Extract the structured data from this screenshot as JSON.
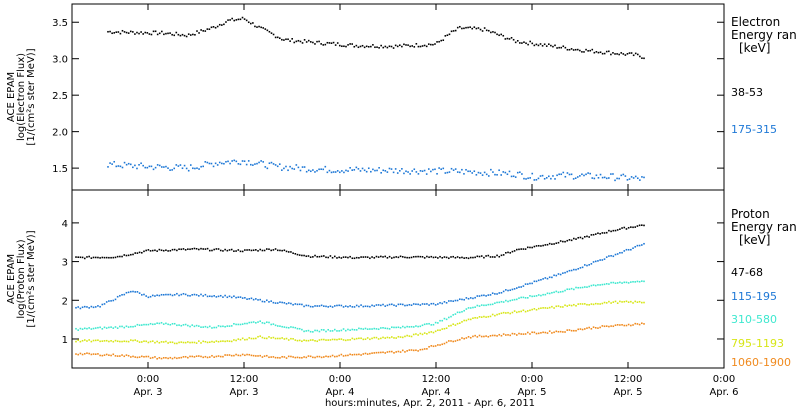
{
  "figure": {
    "xaxis_title": "hours:minutes, Apr.  2, 2011 - Apr.  6, 2011",
    "x_ticks": [
      {
        "time": "0:00",
        "date": "Apr. 3",
        "hours": 24
      },
      {
        "time": "12:00",
        "date": "Apr. 3",
        "hours": 36
      },
      {
        "time": "0:00",
        "date": "Apr. 4",
        "hours": 48
      },
      {
        "time": "12:00",
        "date": "Apr. 4",
        "hours": 60
      },
      {
        "time": "0:00",
        "date": "Apr. 5",
        "hours": 72
      },
      {
        "time": "12:00",
        "date": "Apr. 5",
        "hours": 84
      },
      {
        "time": "0:00",
        "date": "Apr. 6",
        "hours": 96
      }
    ]
  },
  "chart_data": [
    {
      "type": "scatter",
      "panel": "electron",
      "ylabel_lines": [
        "ACE EPAM",
        "log(Electron Flux)",
        "[1/(cm²s ster MeV)]"
      ],
      "legend_title_lines": [
        "Electron",
        "Energy ran",
        "[keV]"
      ],
      "xlim": [
        14.5,
        96
      ],
      "ylim": [
        1.2,
        3.75
      ],
      "y_ticks": [
        1.5,
        2.0,
        2.5,
        3.0,
        3.5
      ],
      "y_tick_labels": [
        "1.5",
        "2.0",
        "2.5",
        "3.0",
        "3.5"
      ],
      "series": [
        {
          "name": "38-53",
          "color": "#000000",
          "x": [
            19,
            22,
            26,
            29,
            32,
            34,
            36,
            38,
            41,
            45,
            50,
            55,
            60,
            62,
            63,
            66,
            68,
            70,
            74,
            78,
            82,
            85,
            86
          ],
          "y": [
            3.37,
            3.36,
            3.35,
            3.32,
            3.42,
            3.52,
            3.55,
            3.42,
            3.26,
            3.22,
            3.18,
            3.17,
            3.2,
            3.36,
            3.42,
            3.4,
            3.32,
            3.24,
            3.18,
            3.12,
            3.08,
            3.05,
            3.02
          ]
        },
        {
          "name": "175-315",
          "color": "#1e78d6",
          "x": [
            19,
            24,
            29,
            33,
            36,
            40,
            46,
            54,
            60,
            64,
            70,
            72,
            76,
            82,
            86
          ],
          "y": [
            1.55,
            1.52,
            1.5,
            1.58,
            1.6,
            1.52,
            1.48,
            1.47,
            1.46,
            1.45,
            1.42,
            1.38,
            1.4,
            1.38,
            1.35
          ]
        }
      ]
    },
    {
      "type": "scatter",
      "panel": "proton",
      "ylabel_lines": [
        "ACE EPAM",
        "log(Proton Flux)",
        "[1/(cm²s ster MeV)]"
      ],
      "legend_title_lines": [
        "Proton",
        "Energy ran",
        "[keV]"
      ],
      "xlim": [
        14.5,
        96
      ],
      "ylim": [
        0.25,
        4.85
      ],
      "y_ticks": [
        1,
        2,
        3,
        4
      ],
      "y_tick_labels": [
        "1",
        "2",
        "3",
        "4"
      ],
      "series": [
        {
          "name": "47-68",
          "color": "#000000",
          "x": [
            15,
            20,
            24,
            30,
            36,
            40,
            44,
            50,
            56,
            64,
            68,
            70,
            74,
            78,
            82,
            86
          ],
          "y": [
            3.1,
            3.12,
            3.28,
            3.32,
            3.28,
            3.32,
            3.14,
            3.1,
            3.12,
            3.1,
            3.15,
            3.3,
            3.45,
            3.6,
            3.8,
            3.95
          ]
        },
        {
          "name": "115-195",
          "color": "#1e78d6",
          "x": [
            15,
            18,
            22,
            24,
            28,
            34,
            40,
            44,
            50,
            56,
            60,
            64,
            68,
            72,
            76,
            80,
            84,
            86
          ],
          "y": [
            1.8,
            1.85,
            2.25,
            2.1,
            2.15,
            2.1,
            1.95,
            1.85,
            1.85,
            1.88,
            1.9,
            2.05,
            2.2,
            2.45,
            2.7,
            3.0,
            3.3,
            3.45
          ]
        },
        {
          "name": "310-580",
          "color": "#3ee8cf",
          "x": [
            15,
            20,
            26,
            32,
            38,
            44,
            50,
            56,
            60,
            62,
            64,
            68,
            72,
            76,
            80,
            86
          ],
          "y": [
            1.25,
            1.3,
            1.4,
            1.3,
            1.45,
            1.2,
            1.25,
            1.3,
            1.4,
            1.6,
            1.8,
            1.95,
            2.1,
            2.25,
            2.4,
            2.5
          ]
        },
        {
          "name": "795-1193",
          "color": "#d7e617",
          "x": [
            15,
            22,
            28,
            34,
            38,
            44,
            50,
            56,
            60,
            62,
            64,
            68,
            72,
            76,
            82,
            86
          ],
          "y": [
            0.95,
            0.95,
            0.9,
            0.95,
            1.05,
            0.95,
            1.0,
            1.05,
            1.2,
            1.35,
            1.5,
            1.65,
            1.75,
            1.85,
            1.95,
            1.95
          ]
        },
        {
          "name": "1060-1900",
          "color": "#f08a1e",
          "x": [
            15,
            20,
            26,
            32,
            36,
            40,
            46,
            52,
            58,
            62,
            64,
            68,
            72,
            76,
            80,
            86
          ],
          "y": [
            0.62,
            0.58,
            0.5,
            0.55,
            0.6,
            0.52,
            0.55,
            0.62,
            0.72,
            0.95,
            1.05,
            1.1,
            1.15,
            1.2,
            1.3,
            1.4
          ]
        }
      ]
    }
  ]
}
